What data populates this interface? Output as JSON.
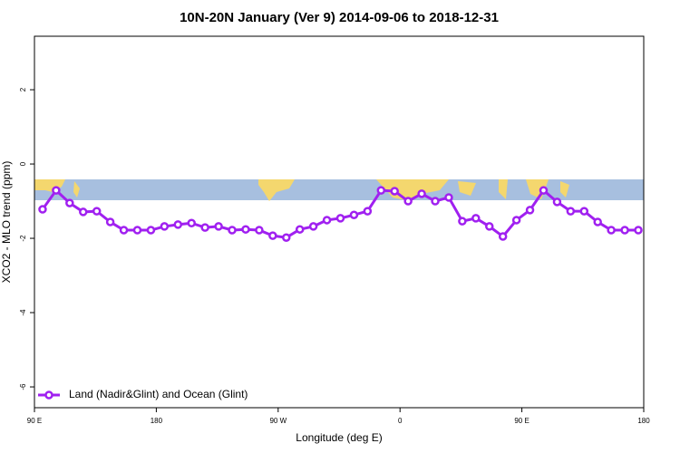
{
  "chart_data": {
    "type": "line",
    "title": "10N-20N January (Ver 9)   2014-09-06 to 2018-12-31",
    "xlabel": "Longitude (deg E)",
    "ylabel": "XCO2 - MLO trend (ppm)",
    "x": [
      96,
      106,
      116,
      126,
      136,
      146,
      156,
      166,
      176,
      186,
      196,
      206,
      216,
      226,
      236,
      246,
      256,
      266,
      276,
      286,
      296,
      306,
      316,
      326,
      336,
      346,
      356,
      366,
      376,
      386,
      396,
      406,
      416,
      426,
      436,
      446,
      456,
      466,
      476,
      486,
      496,
      506,
      516,
      526,
      536
    ],
    "series": [
      {
        "name": "Land (Nadir&Glint) and Ocean (Glint)",
        "color": "#a020f0",
        "values": [
          -1.22,
          -0.71,
          -1.05,
          -1.29,
          -1.27,
          -1.56,
          -1.78,
          -1.78,
          -1.78,
          -1.68,
          -1.63,
          -1.59,
          -1.71,
          -1.68,
          -1.78,
          -1.76,
          -1.78,
          -1.93,
          -1.98,
          -1.76,
          -1.68,
          -1.51,
          -1.46,
          -1.37,
          -1.27,
          -0.71,
          -0.73,
          -1.0,
          -0.8,
          -1.0,
          -0.9,
          -1.54,
          -1.46,
          -1.68,
          -1.95,
          -1.51,
          -1.24,
          -0.71,
          -1.02,
          -1.27,
          -1.27,
          -1.56,
          -1.78,
          -1.78,
          -1.78
        ]
      }
    ],
    "xlim": [
      90,
      540
    ],
    "xticks": [
      {
        "value": 90,
        "label": "90 E"
      },
      180,
      {
        "value": 270,
        "label": "90 W"
      },
      {
        "value": 360,
        "label": "0"
      },
      {
        "value": 450,
        "label": "90 E"
      },
      {
        "value": 540,
        "label": "180"
      }
    ],
    "ylim": [
      -6.56,
      3.44
    ],
    "yticks": [
      -6,
      -4,
      -2,
      0,
      2
    ],
    "legend": "bottom-left"
  }
}
